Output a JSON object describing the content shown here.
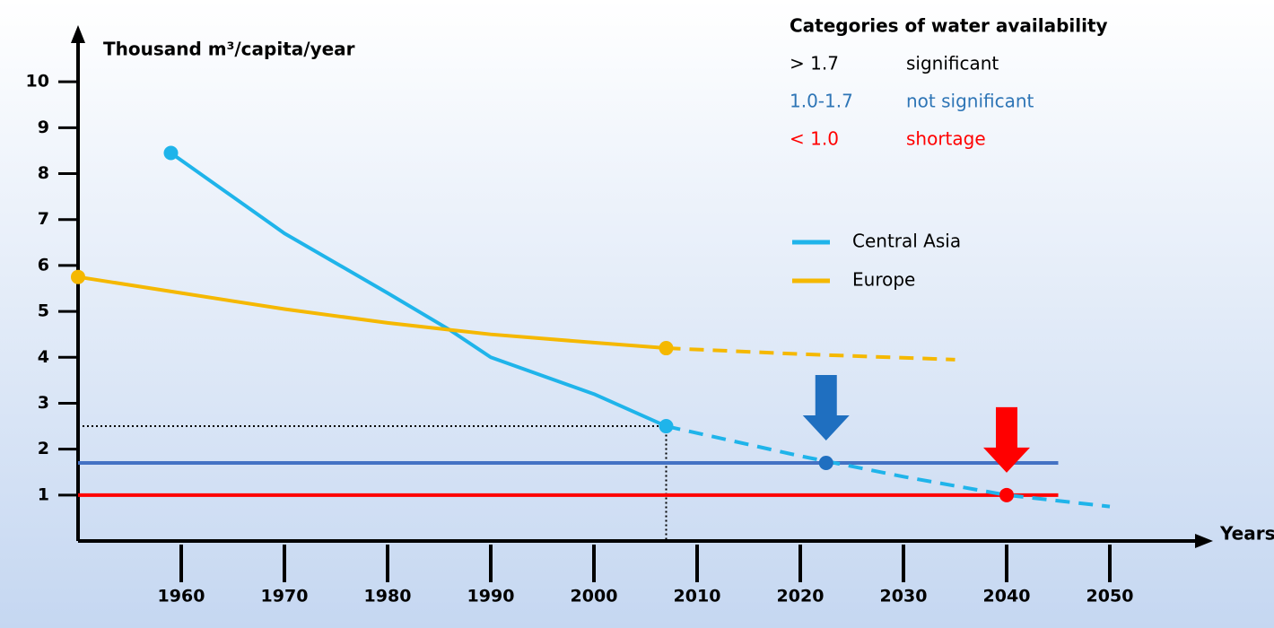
{
  "chart_data": {
    "type": "line",
    "y_label": "Thousand m³/capita/year",
    "x_label": "Years",
    "xlim": [
      1950,
      2060
    ],
    "xticks": [
      1960,
      1970,
      1980,
      1990,
      2000,
      2010,
      2020,
      2030,
      2040,
      2050
    ],
    "ylim": [
      0,
      11
    ],
    "yticks": [
      1,
      2,
      3,
      4,
      5,
      6,
      7,
      8,
      9,
      10
    ],
    "series": [
      {
        "name": "Central Asia",
        "color": "#1fb4ea",
        "x": [
          1959,
          1970,
          1980,
          1986,
          1990,
          2000,
          2007
        ],
        "values": [
          8.45,
          6.7,
          5.4,
          4.6,
          4.0,
          3.2,
          2.5
        ]
      },
      {
        "name": "Europe",
        "color": "#f5b800",
        "x": [
          1950,
          1960,
          1970,
          1980,
          1990,
          2000,
          2007
        ],
        "values": [
          5.75,
          5.4,
          5.05,
          4.75,
          4.5,
          4.32,
          4.2
        ]
      }
    ],
    "projections": [
      {
        "color": "#1fb4ea",
        "x": [
          2007,
          2020,
          2030,
          2040,
          2050
        ],
        "values": [
          2.5,
          1.85,
          1.4,
          1.0,
          0.75
        ]
      },
      {
        "color": "#f5b800",
        "x": [
          2007,
          2020,
          2035
        ],
        "values": [
          4.2,
          4.07,
          3.95
        ]
      }
    ],
    "thresholds": [
      {
        "value": 1.7,
        "color": "#4472c4",
        "x": [
          1950,
          2045
        ]
      },
      {
        "value": 1.0,
        "color": "#ff0000",
        "x": [
          1950,
          2045
        ]
      }
    ],
    "markers": [
      {
        "x": 2022.5,
        "y": 1.7,
        "color": "#1f6fc0"
      },
      {
        "x": 2040,
        "y": 1.0,
        "color": "#ff0000"
      }
    ],
    "guide": {
      "x": 2007,
      "y": 2.5
    },
    "categories_box": {
      "title": "Categories of water availability",
      "rows": [
        {
          "range": "> 1.7",
          "label": "significant",
          "color": "#000000"
        },
        {
          "range": "1.0-1.7",
          "label": "not significant",
          "color": "#2e75b6"
        },
        {
          "range": "< 1.0",
          "label": "shortage",
          "color": "#ff0000"
        }
      ]
    }
  }
}
